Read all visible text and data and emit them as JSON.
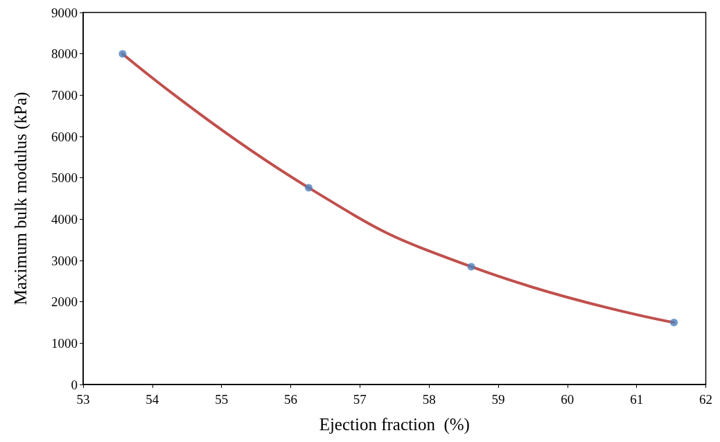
{
  "chart_data": {
    "type": "line",
    "xlabel": "Ejection fraction  (%)",
    "ylabel": "Maximum bulk modulus (kPa)",
    "x": [
      53.57,
      56.26,
      58.61,
      61.54
    ],
    "series": [
      {
        "color": "#c0504d",
        "marker": "none",
        "values": [
          8000,
          4760,
          2850,
          1500
        ]
      },
      {
        "type": "scatter",
        "color": "#4f81bd",
        "marker": "circle",
        "values": [
          8000,
          4760,
          2850,
          1500
        ]
      }
    ],
    "xlim": [
      53,
      62
    ],
    "xticks": [
      53,
      54,
      55,
      56,
      57,
      58,
      59,
      60,
      61,
      62
    ],
    "ylim": [
      0,
      9000
    ],
    "yticks": [
      0,
      1000,
      2000,
      3000,
      4000,
      5000,
      6000,
      7000,
      8000,
      9000
    ],
    "grid": false
  }
}
